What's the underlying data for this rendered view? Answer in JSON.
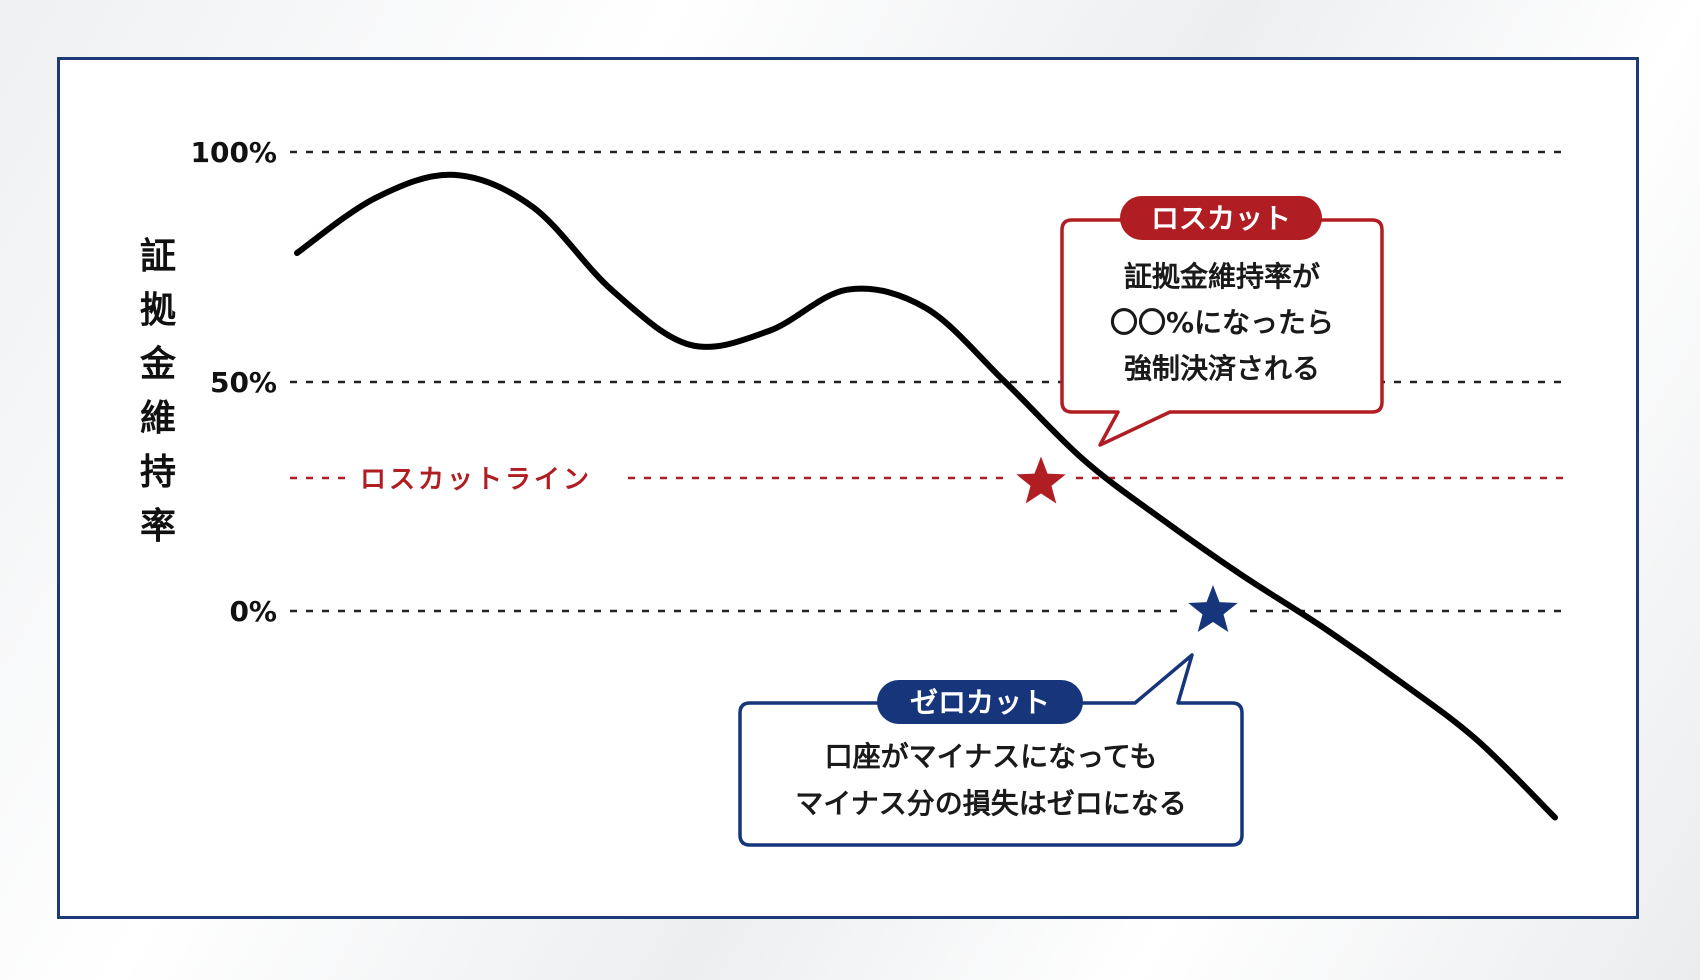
{
  "chart_data": {
    "type": "line",
    "ylabel": "証拠金維持率",
    "y_ticks": [
      "100%",
      "50%",
      "0%"
    ],
    "ylim": [
      -45,
      100
    ],
    "grid": true,
    "series": [
      {
        "x": [
          0,
          1,
          2,
          3,
          4,
          5,
          6,
          7,
          8,
          9,
          10,
          11,
          12,
          13,
          14,
          15,
          16
        ],
        "values": [
          78,
          90,
          95,
          88,
          70,
          58,
          61,
          70,
          66,
          50,
          33,
          20,
          8,
          -3,
          -15,
          -28,
          -45
        ]
      }
    ],
    "threshold_line": {
      "label": "ロスカットライン",
      "value": 28,
      "color": "#b01e23"
    },
    "annotations": {
      "loss_cut": {
        "tag": "ロスカット",
        "lines": [
          "証拠金維持率が",
          "〇〇%になったら",
          "強制決済される"
        ],
        "color": "#b01e23",
        "value": 28
      },
      "zero_cut": {
        "tag": "ゼロカット",
        "lines": [
          "口座がマイナスになっても",
          "マイナス分の損失はゼロになる"
        ],
        "color": "#16357a",
        "value": 0
      }
    }
  },
  "colors": {
    "frame": "#1c3a78",
    "curve": "#000000",
    "grid": "#222222"
  }
}
